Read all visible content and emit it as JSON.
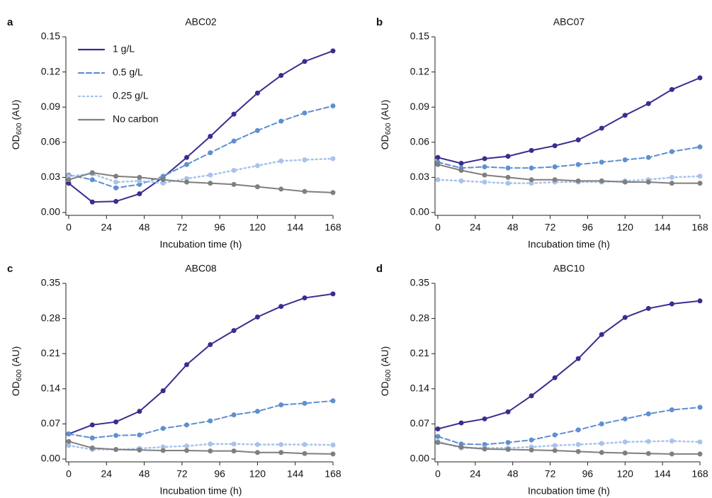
{
  "chart_data": [
    {
      "type": "line",
      "panel_label": "a",
      "title": "ABC02",
      "x_label": "Incubation time (h)",
      "y_label": "OD",
      "y_label_sub": "600",
      "y_label_unit": "(AU)",
      "x": [
        0,
        15,
        30,
        45,
        60,
        75,
        90,
        105,
        120,
        135,
        150,
        168
      ],
      "xlim": [
        0,
        168
      ],
      "xticks": [
        0,
        24,
        48,
        72,
        96,
        120,
        144,
        168
      ],
      "ylim": [
        0,
        0.15
      ],
      "yticks": [
        {
          "value": 0,
          "label": "0.00"
        },
        0.03,
        0.06,
        0.09,
        0.12,
        0.15
      ],
      "legend": "upper left",
      "series": [
        {
          "name": "1 g/L",
          "color": "#3b2c8e",
          "style": "solid",
          "values": [
            0.025,
            0.009,
            0.0095,
            0.016,
            0.03,
            0.047,
            0.065,
            0.084,
            0.102,
            0.117,
            0.129,
            0.138
          ]
        },
        {
          "name": "0.5 g/L",
          "color": "#5e8fd0",
          "style": "dashed",
          "values": [
            0.032,
            0.028,
            0.021,
            0.024,
            0.031,
            0.041,
            0.051,
            0.061,
            0.07,
            0.078,
            0.085,
            0.091
          ]
        },
        {
          "name": "0.25 g/L",
          "color": "#a8c2ec",
          "style": "dotted",
          "values": [
            0.031,
            0.033,
            0.026,
            0.027,
            0.025,
            0.029,
            0.032,
            0.036,
            0.04,
            0.044,
            0.045,
            0.046
          ]
        },
        {
          "name": "No carbon",
          "color": "#7f7f7f",
          "style": "solid",
          "values": [
            0.028,
            0.034,
            0.031,
            0.03,
            0.028,
            0.026,
            0.025,
            0.024,
            0.022,
            0.02,
            0.018,
            0.017
          ]
        }
      ]
    },
    {
      "type": "line",
      "panel_label": "b",
      "title": "ABC07",
      "x_label": "Incubation time (h)",
      "y_label": "OD",
      "y_label_sub": "600",
      "y_label_unit": "(AU)",
      "x": [
        0,
        15,
        30,
        45,
        60,
        75,
        90,
        105,
        120,
        135,
        150,
        168
      ],
      "xlim": [
        0,
        168
      ],
      "xticks": [
        0,
        24,
        48,
        72,
        96,
        120,
        144,
        168
      ],
      "ylim": [
        0,
        0.15
      ],
      "yticks": [
        {
          "value": 0,
          "label": "0.00"
        },
        0.03,
        0.06,
        0.09,
        0.12,
        0.15
      ],
      "series": [
        {
          "color": "#3b2c8e",
          "style": "solid",
          "values": [
            0.047,
            0.042,
            0.046,
            0.048,
            0.053,
            0.057,
            0.062,
            0.072,
            0.083,
            0.093,
            0.105,
            0.115
          ]
        },
        {
          "color": "#5e8fd0",
          "style": "dashed",
          "values": [
            0.043,
            0.038,
            0.039,
            0.038,
            0.038,
            0.039,
            0.041,
            0.043,
            0.045,
            0.047,
            0.052,
            0.056
          ]
        },
        {
          "color": "#a8c2ec",
          "style": "dotted",
          "values": [
            0.028,
            0.027,
            0.026,
            0.025,
            0.025,
            0.026,
            0.026,
            0.026,
            0.027,
            0.028,
            0.03,
            0.031
          ]
        },
        {
          "color": "#7f7f7f",
          "style": "solid",
          "values": [
            0.041,
            0.036,
            0.032,
            0.03,
            0.028,
            0.028,
            0.027,
            0.027,
            0.026,
            0.026,
            0.025,
            0.025
          ]
        }
      ]
    },
    {
      "type": "line",
      "panel_label": "c",
      "title": "ABC08",
      "x_label": "Incubation time (h)",
      "y_label": "OD",
      "y_label_sub": "600",
      "y_label_unit": "(AU)",
      "x": [
        0,
        15,
        30,
        45,
        60,
        75,
        90,
        105,
        120,
        135,
        150,
        168
      ],
      "xlim": [
        0,
        168
      ],
      "xticks": [
        0,
        24,
        48,
        72,
        96,
        120,
        144,
        168
      ],
      "ylim": [
        0,
        0.35
      ],
      "yticks": [
        {
          "value": 0,
          "label": "0.00"
        },
        0.07,
        0.14,
        0.21,
        0.28,
        0.35
      ],
      "series": [
        {
          "color": "#3b2c8e",
          "style": "solid",
          "values": [
            0.05,
            0.068,
            0.074,
            0.095,
            0.136,
            0.188,
            0.228,
            0.256,
            0.283,
            0.304,
            0.321,
            0.329
          ]
        },
        {
          "color": "#5e8fd0",
          "style": "dashed",
          "values": [
            0.05,
            0.042,
            0.047,
            0.048,
            0.061,
            0.068,
            0.076,
            0.088,
            0.095,
            0.108,
            0.111,
            0.116
          ]
        },
        {
          "color": "#a8c2ec",
          "style": "dotted",
          "values": [
            0.027,
            0.019,
            0.019,
            0.021,
            0.024,
            0.026,
            0.03,
            0.03,
            0.029,
            0.029,
            0.029,
            0.028
          ]
        },
        {
          "color": "#7f7f7f",
          "style": "solid",
          "values": [
            0.035,
            0.022,
            0.019,
            0.018,
            0.017,
            0.017,
            0.016,
            0.016,
            0.013,
            0.013,
            0.011,
            0.01
          ]
        }
      ]
    },
    {
      "type": "line",
      "panel_label": "d",
      "title": "ABC10",
      "x_label": "Incubation time (h)",
      "y_label": "OD",
      "y_label_sub": "600",
      "y_label_unit": "(AU)",
      "x": [
        0,
        15,
        30,
        45,
        60,
        75,
        90,
        105,
        120,
        135,
        150,
        168
      ],
      "xlim": [
        0,
        168
      ],
      "xticks": [
        0,
        24,
        48,
        72,
        96,
        120,
        144,
        168
      ],
      "ylim": [
        0,
        0.35
      ],
      "yticks": [
        {
          "value": 0,
          "label": "0.00"
        },
        0.07,
        0.14,
        0.21,
        0.28,
        0.35
      ],
      "series": [
        {
          "color": "#3b2c8e",
          "style": "solid",
          "values": [
            0.06,
            0.072,
            0.08,
            0.094,
            0.126,
            0.162,
            0.2,
            0.248,
            0.282,
            0.3,
            0.309,
            0.315
          ]
        },
        {
          "color": "#5e8fd0",
          "style": "dashed",
          "values": [
            0.045,
            0.03,
            0.029,
            0.033,
            0.038,
            0.048,
            0.058,
            0.07,
            0.08,
            0.09,
            0.098,
            0.103
          ]
        },
        {
          "color": "#a8c2ec",
          "style": "dotted",
          "values": [
            0.035,
            0.022,
            0.022,
            0.022,
            0.024,
            0.027,
            0.029,
            0.031,
            0.034,
            0.035,
            0.036,
            0.034
          ]
        },
        {
          "color": "#7f7f7f",
          "style": "solid",
          "values": [
            0.033,
            0.024,
            0.02,
            0.019,
            0.018,
            0.017,
            0.015,
            0.013,
            0.012,
            0.011,
            0.01,
            0.01
          ]
        }
      ]
    }
  ]
}
